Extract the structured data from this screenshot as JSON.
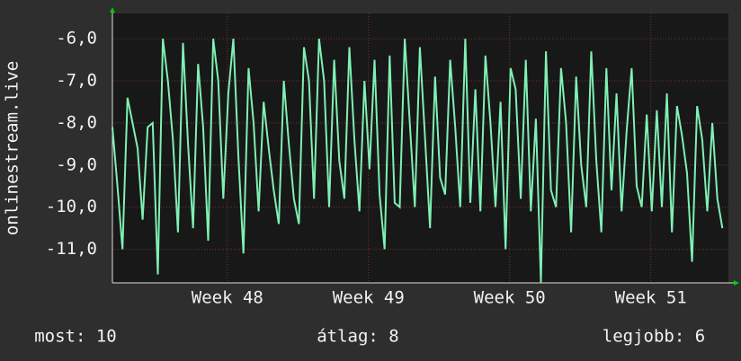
{
  "chart_data": {
    "type": "line",
    "ylabel": "onlinestream.live",
    "x": [
      0,
      0.25,
      0.5,
      0.75,
      1,
      1.25,
      1.5,
      1.75,
      2,
      2.25,
      2.5,
      2.75,
      3,
      3.25,
      3.5,
      3.75,
      4,
      4.25,
      4.5,
      4.75,
      5,
      5.25,
      5.5,
      5.75,
      6,
      6.25,
      6.5,
      6.75,
      7,
      7.25,
      7.5,
      7.75,
      8,
      8.25,
      8.5,
      8.75,
      9,
      9.25,
      9.5,
      9.75,
      10,
      10.25,
      10.5,
      10.75,
      11,
      11.25,
      11.5,
      11.75,
      12,
      12.25,
      12.5,
      12.75,
      13,
      13.25,
      13.5,
      13.75,
      14,
      14.25,
      14.5,
      14.75,
      15,
      15.25,
      15.5,
      15.75,
      16,
      16.25,
      16.5,
      16.75,
      17,
      17.25,
      17.5,
      17.75,
      18,
      18.25,
      18.5,
      18.75,
      19,
      19.25,
      19.5,
      19.75,
      20,
      20.25,
      20.5,
      20.75,
      21,
      21.25,
      21.5,
      21.75,
      22,
      22.25,
      22.5,
      22.75,
      23,
      23.25,
      23.5,
      23.75,
      24,
      24.25,
      24.5,
      24.75,
      25,
      25.25,
      25.5,
      25.75,
      26,
      26.25,
      26.5,
      26.75,
      27,
      27.25,
      27.5,
      27.75,
      28,
      28.25,
      28.5,
      28.75,
      29,
      29.25,
      29.5,
      29.75,
      30,
      30.25
    ],
    "series": [
      {
        "color": "#7ff0b4",
        "values": [
          -8.1,
          -9.5,
          -11.0,
          -7.4,
          -8.0,
          -8.6,
          -10.3,
          -8.1,
          -8.0,
          -11.6,
          -6.0,
          -7.0,
          -8.4,
          -10.6,
          -6.1,
          -8.5,
          -10.5,
          -6.6,
          -8.1,
          -10.8,
          -6.0,
          -7.0,
          -9.8,
          -7.3,
          -6.0,
          -8.8,
          -11.1,
          -6.7,
          -8.0,
          -10.1,
          -7.5,
          -8.6,
          -9.6,
          -10.4,
          -7.0,
          -8.5,
          -9.8,
          -10.4,
          -6.2,
          -7.0,
          -9.8,
          -6.0,
          -7.0,
          -10.0,
          -6.5,
          -8.9,
          -9.8,
          -6.2,
          -8.4,
          -10.1,
          -7.0,
          -9.1,
          -6.5,
          -9.7,
          -11.0,
          -6.4,
          -9.9,
          -10.0,
          -6.0,
          -8.0,
          -10.0,
          -6.2,
          -8.3,
          -10.5,
          -6.9,
          -9.3,
          -9.7,
          -6.5,
          -8.1,
          -10.0,
          -6.0,
          -9.9,
          -7.2,
          -10.1,
          -6.4,
          -8.0,
          -10.0,
          -7.5,
          -11.0,
          -6.7,
          -7.2,
          -9.8,
          -6.5,
          -10.1,
          -7.9,
          -11.8,
          -6.3,
          -9.6,
          -10.0,
          -6.7,
          -8.0,
          -10.6,
          -6.9,
          -9.0,
          -10.0,
          -6.3,
          -8.9,
          -10.6,
          -6.7,
          -9.6,
          -7.3,
          -10.1,
          -8.2,
          -6.7,
          -9.5,
          -10.0,
          -7.8,
          -10.1,
          -7.7,
          -10.0,
          -7.3,
          -10.6,
          -7.6,
          -8.3,
          -9.2,
          -11.3,
          -7.6,
          -8.4,
          -10.1,
          -8.0,
          -9.8,
          -10.5
        ]
      }
    ],
    "xlim": [
      0,
      30.55
    ],
    "xticks": [
      {
        "value": 5.7,
        "label": "Week 48"
      },
      {
        "value": 12.7,
        "label": "Week 49"
      },
      {
        "value": 19.7,
        "label": "Week 50"
      },
      {
        "value": 26.7,
        "label": "Week 51"
      }
    ],
    "ylim": [
      -11.8,
      -5.4
    ],
    "yticks": [
      {
        "value": -11,
        "label": "-11,0"
      },
      {
        "value": -10,
        "label": "-10,0"
      },
      {
        "value": -9,
        "label": "-9,0"
      },
      {
        "value": -8,
        "label": "-8,0"
      },
      {
        "value": -7,
        "label": "-7,0"
      },
      {
        "value": -6,
        "label": "-6,0"
      }
    ],
    "grid": true,
    "stats": [
      "most: 10",
      "átlag: 8",
      "legjobb: 6"
    ]
  }
}
